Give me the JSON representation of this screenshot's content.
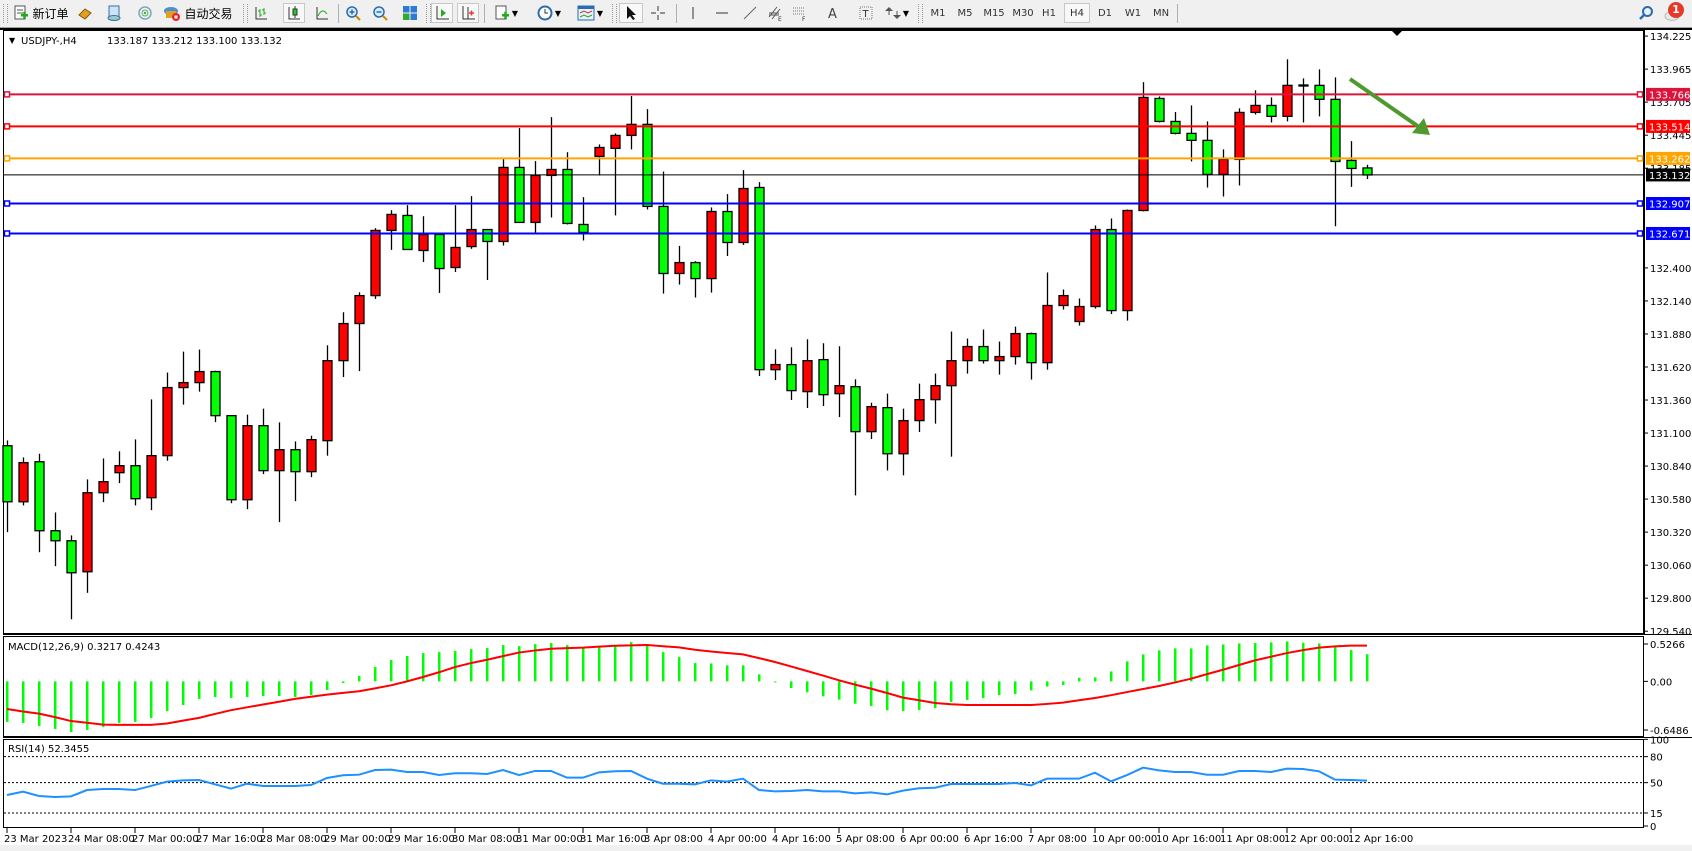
{
  "toolbar": {
    "new_order_label": "新订单",
    "auto_trading_label": "自动交易",
    "timeframes": [
      "M1",
      "M5",
      "M15",
      "M30",
      "H1",
      "H4",
      "D1",
      "W1",
      "MN"
    ],
    "active_timeframe": "H4",
    "notification_count": "1",
    "icons": [
      "new-order-icon",
      "gold-bars-icon",
      "market-watch-icon",
      "signals-icon",
      "auto-trading-icon",
      "bar-chart-icon",
      "candlestick-chart-icon",
      "line-chart-icon",
      "zoom-in-icon",
      "zoom-out-icon",
      "tile-windows-icon",
      "auto-scroll-icon",
      "chart-shift-icon",
      "indicators-icon",
      "periods-clock-icon",
      "templates-icon",
      "cursor-icon",
      "crosshair-icon",
      "vertical-line-icon",
      "horizontal-line-icon",
      "trendline-icon",
      "equidistant-channel-icon",
      "fibonacci-icon",
      "text-icon",
      "text-label-icon",
      "arrows-icon",
      "search-icon",
      "notifications-icon"
    ]
  },
  "chart": {
    "symbol_header": "USDJPY-,H4",
    "ohlc_header": "133.187 133.212 133.100 133.132",
    "up_color": "#ff0000",
    "down_color": "#00ff00"
  },
  "chart_data": [
    {
      "type": "candlestick",
      "symbol": "USDJPY-",
      "timeframe": "H4",
      "ylim": [
        129.522,
        134.265
      ],
      "y_ticks": [
        "134.225",
        "133.965",
        "133.705",
        "133.445",
        "133.185",
        "132.400",
        "132.140",
        "131.880",
        "131.620",
        "131.360",
        "131.100",
        "130.840",
        "130.580",
        "130.320",
        "130.060",
        "129.800",
        "129.540"
      ],
      "x_labels": [
        "23 Mar 2023",
        "24 Mar 08:00",
        "27 Mar 00:00",
        "27 Mar 16:00",
        "28 Mar 08:00",
        "29 Mar 00:00",
        "29 Mar 16:00",
        "30 Mar 08:00",
        "31 Mar 00:00",
        "31 Mar 16:00",
        "3 Apr 08:00",
        "4 Apr 00:00",
        "4 Apr 16:00",
        "5 Apr 08:00",
        "6 Apr 00:00",
        "6 Apr 16:00",
        "7 Apr 08:00",
        "10 Apr 00:00",
        "10 Apr 16:00",
        "11 Apr 08:00",
        "12 Apr 00:00",
        "12 Apr 16:00"
      ],
      "ohlc": [
        [
          131.0,
          131.042,
          130.32,
          130.559
        ],
        [
          130.559,
          130.908,
          130.53,
          130.867
        ],
        [
          130.874,
          130.937,
          130.162,
          130.331
        ],
        [
          130.331,
          130.475,
          130.052,
          130.252
        ],
        [
          130.252,
          130.294,
          129.634,
          130.0
        ],
        [
          130.008,
          130.735,
          129.842,
          130.63
        ],
        [
          130.63,
          130.9,
          130.556,
          130.717
        ],
        [
          130.788,
          130.956,
          130.706,
          130.843
        ],
        [
          130.843,
          131.05,
          130.53,
          130.583
        ],
        [
          130.591,
          131.365,
          130.493,
          130.922
        ],
        [
          130.922,
          131.576,
          130.882,
          131.458
        ],
        [
          131.458,
          131.741,
          131.324,
          131.497
        ],
        [
          131.497,
          131.757,
          131.426,
          131.584
        ],
        [
          131.584,
          131.591,
          131.186,
          131.237
        ],
        [
          131.237,
          131.237,
          130.548,
          130.575
        ],
        [
          130.575,
          131.245,
          130.501,
          131.158
        ],
        [
          131.158,
          131.292,
          130.777,
          130.804
        ],
        [
          130.804,
          131.184,
          130.399,
          130.969
        ],
        [
          130.969,
          131.034,
          130.564,
          130.796
        ],
        [
          130.796,
          131.079,
          130.753,
          131.048
        ],
        [
          131.04,
          131.791,
          130.922,
          131.67
        ],
        [
          131.67,
          132.051,
          131.541,
          131.962
        ],
        [
          131.962,
          132.208,
          131.588,
          132.182
        ],
        [
          132.182,
          132.713,
          132.156,
          132.695
        ],
        [
          132.695,
          132.854,
          132.542,
          132.821
        ],
        [
          132.813,
          132.894,
          132.545,
          132.545
        ],
        [
          132.537,
          132.807,
          132.447,
          132.663
        ],
        [
          132.663,
          132.663,
          132.203,
          132.395
        ],
        [
          132.403,
          132.894,
          132.368,
          132.561
        ],
        [
          132.568,
          132.965,
          132.55,
          132.702
        ],
        [
          132.702,
          132.702,
          132.305,
          132.608
        ],
        [
          132.608,
          133.256,
          132.576,
          133.191
        ],
        [
          133.191,
          133.501,
          132.758,
          132.758
        ],
        [
          132.758,
          133.241,
          132.679,
          133.128
        ],
        [
          133.128,
          133.587,
          132.797,
          133.175
        ],
        [
          133.175,
          133.311,
          132.742,
          132.75
        ],
        [
          132.742,
          132.957,
          132.616,
          132.679
        ],
        [
          133.278,
          133.372,
          133.128,
          133.348
        ],
        [
          133.341,
          133.459,
          132.813,
          133.443
        ],
        [
          133.443,
          133.753,
          133.333,
          133.53
        ],
        [
          133.53,
          133.65,
          132.86,
          132.884
        ],
        [
          132.884,
          133.159,
          132.198,
          132.356
        ],
        [
          132.356,
          132.573,
          132.269,
          132.442
        ],
        [
          132.442,
          132.453,
          132.167,
          132.316
        ],
        [
          132.316,
          132.876,
          132.206,
          132.844
        ],
        [
          132.844,
          132.981,
          132.494,
          132.6
        ],
        [
          132.6,
          133.17,
          132.581,
          133.025
        ],
        [
          133.033,
          133.075,
          131.549,
          131.599
        ],
        [
          131.599,
          131.759,
          131.517,
          131.639
        ],
        [
          131.639,
          131.775,
          131.36,
          131.434
        ],
        [
          131.426,
          131.838,
          131.297,
          131.67
        ],
        [
          131.678,
          131.807,
          131.313,
          131.402
        ],
        [
          131.41,
          131.783,
          131.226,
          131.473
        ],
        [
          131.465,
          131.523,
          130.609,
          131.111
        ],
        [
          131.111,
          131.339,
          131.053,
          131.308
        ],
        [
          131.3,
          131.41,
          130.806,
          130.937
        ],
        [
          130.937,
          131.292,
          130.767,
          131.198
        ],
        [
          131.198,
          131.489,
          131.108,
          131.363
        ],
        [
          131.363,
          131.568,
          131.174,
          131.473
        ],
        [
          131.473,
          131.899,
          130.914,
          131.67
        ],
        [
          131.67,
          131.844,
          131.568,
          131.781
        ],
        [
          131.781,
          131.915,
          131.647,
          131.67
        ],
        [
          131.67,
          131.82,
          131.56,
          131.702
        ],
        [
          131.702,
          131.938,
          131.639,
          131.883
        ],
        [
          131.883,
          131.891,
          131.521,
          131.654
        ],
        [
          131.654,
          132.364,
          131.599,
          132.104
        ],
        [
          132.104,
          132.23,
          132.072,
          132.182
        ],
        [
          131.978,
          132.159,
          131.946,
          132.096
        ],
        [
          132.096,
          132.734,
          132.08,
          132.702
        ],
        [
          132.702,
          132.789,
          132.037,
          132.064
        ],
        [
          132.064,
          132.86,
          131.985,
          132.852
        ],
        [
          132.852,
          133.863,
          132.844,
          133.742
        ],
        [
          133.734,
          133.75,
          133.545,
          133.553
        ],
        [
          133.553,
          133.627,
          133.451,
          133.459
        ],
        [
          133.459,
          133.679,
          133.238,
          133.404
        ],
        [
          133.404,
          133.553,
          133.033,
          133.136
        ],
        [
          133.136,
          133.333,
          132.962,
          133.254
        ],
        [
          133.254,
          133.656,
          133.049,
          133.624
        ],
        [
          133.624,
          133.798,
          133.608,
          133.679
        ],
        [
          133.679,
          133.742,
          133.545,
          133.593
        ],
        [
          133.593,
          134.042,
          133.553,
          133.837
        ],
        [
          133.837,
          133.892,
          133.545,
          133.84
        ],
        [
          133.837,
          133.963,
          133.593,
          133.727
        ],
        [
          133.727,
          133.9,
          132.728,
          133.238
        ],
        [
          133.246,
          133.398,
          133.038,
          133.183
        ],
        [
          133.187,
          133.212,
          133.1,
          133.132
        ]
      ],
      "horizontal_lines": [
        {
          "price": "133.766",
          "color": "#dc143c"
        },
        {
          "price": "133.514",
          "color": "#ff0000"
        },
        {
          "price": "133.262",
          "color": "#ffa500"
        },
        {
          "price": "133.132",
          "color": "#000000"
        },
        {
          "price": "132.907",
          "color": "#0000ff"
        },
        {
          "price": "132.671",
          "color": "#0000ff"
        }
      ],
      "arrow_annotation": {
        "direction": "down-right",
        "color": "#4f9a2f"
      }
    },
    {
      "type": "bar+line",
      "title": "MACD(12,26,9) 0.3217 0.4243",
      "ylim": [
        -0.6486,
        0.5266
      ],
      "y_ticks": [
        "0.5266",
        "0.00",
        "-0.6486"
      ],
      "histogram_color": "#00ff00",
      "signal_color": "#ff0000",
      "macd": [
        -0.482,
        -0.494,
        -0.53,
        -0.565,
        -0.601,
        -0.577,
        -0.541,
        -0.494,
        -0.482,
        -0.435,
        -0.352,
        -0.281,
        -0.209,
        -0.186,
        -0.197,
        -0.186,
        -0.174,
        -0.174,
        -0.186,
        -0.162,
        -0.102,
        -0.02,
        0.063,
        0.17,
        0.253,
        0.301,
        0.336,
        0.347,
        0.36,
        0.383,
        0.395,
        0.431,
        0.419,
        0.442,
        0.455,
        0.431,
        0.407,
        0.419,
        0.431,
        0.466,
        0.431,
        0.347,
        0.288,
        0.217,
        0.213,
        0.19,
        0.19,
        0.083,
        -0.009,
        -0.079,
        -0.13,
        -0.178,
        -0.217,
        -0.265,
        -0.293,
        -0.343,
        -0.352,
        -0.34,
        -0.316,
        -0.245,
        -0.221,
        -0.198,
        -0.162,
        -0.15,
        -0.107,
        -0.06,
        -0.043,
        0.043,
        0.047,
        0.118,
        0.237,
        0.32,
        0.368,
        0.391,
        0.391,
        0.427,
        0.438,
        0.45,
        0.455,
        0.463,
        0.474,
        0.458,
        0.45,
        0.419,
        0.371,
        0.3217
      ],
      "signal": [
        -0.328,
        -0.358,
        -0.383,
        -0.425,
        -0.471,
        -0.491,
        -0.514,
        -0.516,
        -0.517,
        -0.516,
        -0.5,
        -0.466,
        -0.433,
        -0.387,
        -0.342,
        -0.308,
        -0.275,
        -0.242,
        -0.208,
        -0.183,
        -0.158,
        -0.137,
        -0.117,
        -0.083,
        -0.047,
        0.0,
        0.052,
        0.108,
        0.17,
        0.217,
        0.257,
        0.3,
        0.342,
        0.367,
        0.387,
        0.394,
        0.4,
        0.412,
        0.423,
        0.427,
        0.431,
        0.417,
        0.403,
        0.375,
        0.354,
        0.337,
        0.32,
        0.276,
        0.23,
        0.177,
        0.123,
        0.069,
        0.012,
        -0.039,
        -0.086,
        -0.138,
        -0.193,
        -0.224,
        -0.257,
        -0.272,
        -0.28,
        -0.28,
        -0.28,
        -0.28,
        -0.28,
        -0.268,
        -0.253,
        -0.224,
        -0.198,
        -0.164,
        -0.127,
        -0.091,
        -0.055,
        -0.013,
        0.032,
        0.086,
        0.138,
        0.194,
        0.249,
        0.293,
        0.336,
        0.371,
        0.4,
        0.415,
        0.424,
        0.4243
      ]
    },
    {
      "type": "line",
      "title": "RSI(14) 52.3455",
      "ylim": [
        0,
        100
      ],
      "y_ticks": [
        "100",
        "80",
        "50",
        "15",
        "0"
      ],
      "levels": [
        80,
        50,
        15
      ],
      "line_color": "#1e90ff",
      "values": [
        35.8,
        39.6,
        34.6,
        33.5,
        34.2,
        41.5,
        42.7,
        42.7,
        41.5,
        46.2,
        51.2,
        52.7,
        53.1,
        48.1,
        43.1,
        48.8,
        46.2,
        46.2,
        46.2,
        47.3,
        55.4,
        58.5,
        59.2,
        64.6,
        65.0,
        62.3,
        62.3,
        58.8,
        60.8,
        60.8,
        60.0,
        64.6,
        58.8,
        63.5,
        63.5,
        55.8,
        55.8,
        61.9,
        63.1,
        63.5,
        54.6,
        48.8,
        48.8,
        48.1,
        52.7,
        51.2,
        54.6,
        41.5,
        40.0,
        40.4,
        41.5,
        40.0,
        40.0,
        37.7,
        38.8,
        36.5,
        40.8,
        43.5,
        44.2,
        48.5,
        48.5,
        48.5,
        48.5,
        49.6,
        46.9,
        54.6,
        54.6,
        54.6,
        61.5,
        51.5,
        58.8,
        67.3,
        64.2,
        62.3,
        62.3,
        59.2,
        59.2,
        63.5,
        63.5,
        62.3,
        66.2,
        65.8,
        63.1,
        53.5,
        53.1,
        52.3455
      ]
    }
  ]
}
